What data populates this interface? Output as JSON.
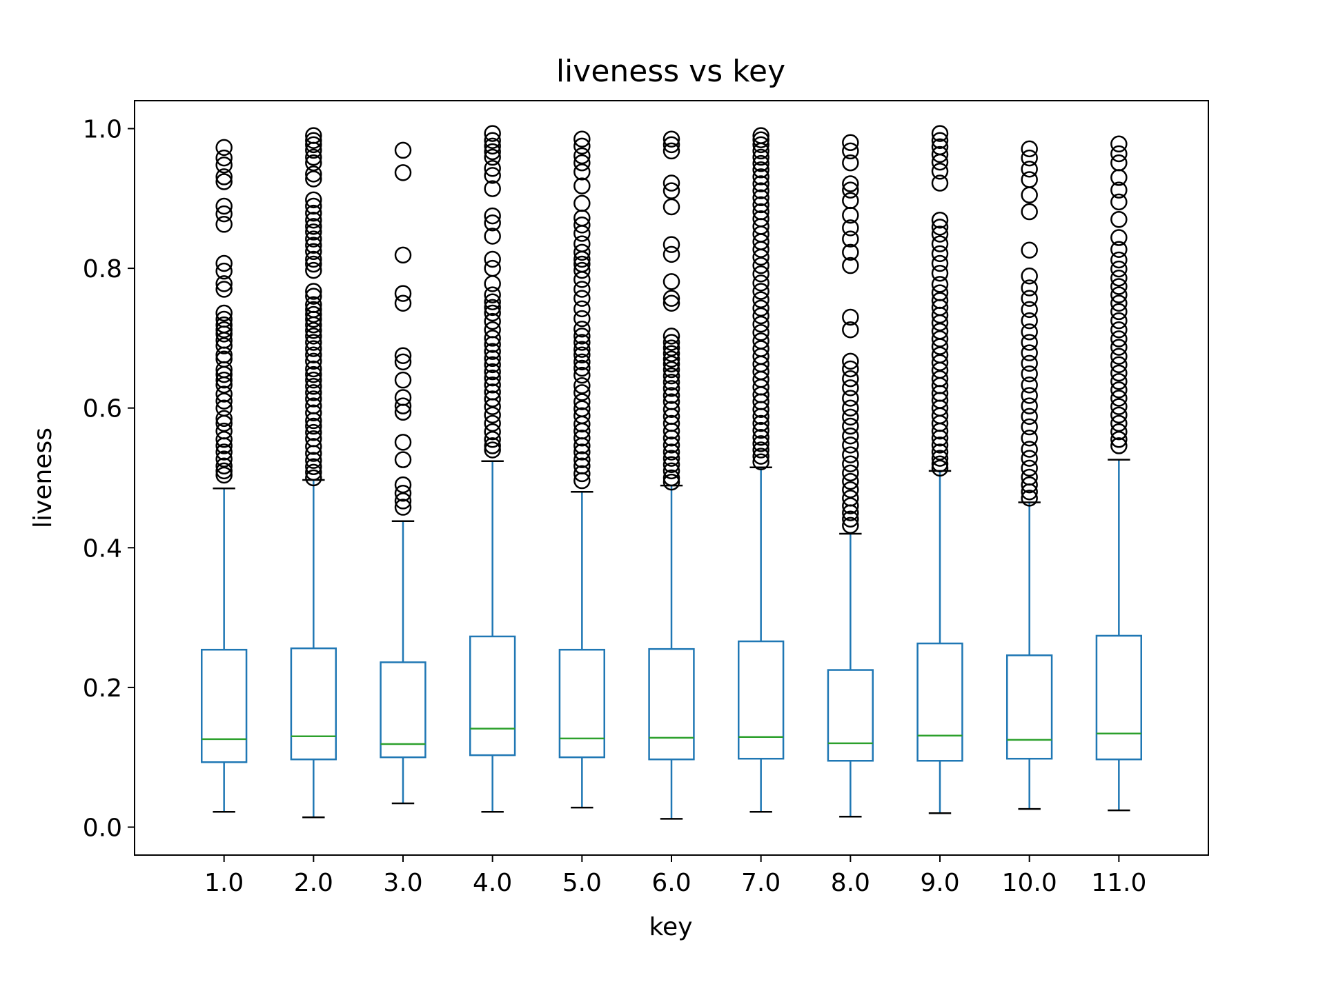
{
  "chart_data": {
    "type": "boxplot",
    "title": "liveness vs key",
    "xlabel": "key",
    "ylabel": "liveness",
    "categories": [
      "1.0",
      "2.0",
      "3.0",
      "4.0",
      "5.0",
      "6.0",
      "7.0",
      "8.0",
      "9.0",
      "10.0",
      "11.0"
    ],
    "ylim": [
      -0.04,
      1.04
    ],
    "yticks": [
      "0.0",
      "0.2",
      "0.4",
      "0.6",
      "0.8",
      "1.0"
    ],
    "grid": false,
    "legend": "none",
    "colors": {
      "box": "#1f77b4",
      "median": "#2ca02c",
      "whisker_cap": "#000000",
      "outlier": "#000000"
    },
    "boxes": [
      {
        "category": "1.0",
        "whisker_low": 0.022,
        "q1": 0.093,
        "median": 0.126,
        "q3": 0.254,
        "whisker_high": 0.485,
        "outliers": [
          0.973,
          0.958,
          0.948,
          0.931,
          0.924,
          0.889,
          0.878,
          0.863,
          0.807,
          0.796,
          0.778,
          0.77,
          0.736,
          0.727,
          0.719,
          0.712,
          0.706,
          0.697,
          0.689,
          0.676,
          0.67,
          0.655,
          0.648,
          0.64,
          0.633,
          0.62,
          0.61,
          0.6,
          0.585,
          0.578,
          0.567,
          0.555,
          0.546,
          0.537,
          0.527,
          0.517,
          0.51,
          0.504
        ]
      },
      {
        "category": "2.0",
        "whisker_low": 0.014,
        "q1": 0.097,
        "median": 0.13,
        "q3": 0.256,
        "whisker_high": 0.497,
        "outliers": [
          0.99,
          0.983,
          0.977,
          0.969,
          0.959,
          0.951,
          0.935,
          0.928,
          0.898,
          0.889,
          0.879,
          0.869,
          0.86,
          0.852,
          0.842,
          0.833,
          0.824,
          0.813,
          0.806,
          0.797,
          0.767,
          0.76,
          0.748,
          0.741,
          0.734,
          0.727,
          0.719,
          0.711,
          0.703,
          0.694,
          0.685,
          0.676,
          0.667,
          0.656,
          0.648,
          0.64,
          0.631,
          0.622,
          0.613,
          0.603,
          0.593,
          0.582,
          0.574,
          0.565,
          0.556,
          0.545,
          0.535,
          0.525,
          0.516,
          0.508,
          0.5
        ]
      },
      {
        "category": "3.0",
        "whisker_low": 0.034,
        "q1": 0.1,
        "median": 0.119,
        "q3": 0.236,
        "whisker_high": 0.438,
        "outliers": [
          0.969,
          0.937,
          0.819,
          0.764,
          0.75,
          0.675,
          0.666,
          0.64,
          0.615,
          0.603,
          0.594,
          0.551,
          0.526,
          0.49,
          0.478,
          0.467,
          0.458
        ]
      },
      {
        "category": "4.0",
        "whisker_low": 0.022,
        "q1": 0.103,
        "median": 0.141,
        "q3": 0.273,
        "whisker_high": 0.524,
        "outliers": [
          0.993,
          0.983,
          0.975,
          0.967,
          0.959,
          0.943,
          0.933,
          0.914,
          0.875,
          0.865,
          0.846,
          0.813,
          0.8,
          0.778,
          0.762,
          0.752,
          0.744,
          0.736,
          0.724,
          0.712,
          0.7,
          0.691,
          0.681,
          0.671,
          0.662,
          0.652,
          0.643,
          0.633,
          0.623,
          0.613,
          0.602,
          0.59,
          0.578,
          0.566,
          0.555,
          0.546,
          0.54
        ]
      },
      {
        "category": "5.0",
        "whisker_low": 0.028,
        "q1": 0.1,
        "median": 0.127,
        "q3": 0.254,
        "whisker_high": 0.48,
        "outliers": [
          0.985,
          0.975,
          0.961,
          0.951,
          0.938,
          0.918,
          0.893,
          0.872,
          0.862,
          0.85,
          0.835,
          0.823,
          0.813,
          0.806,
          0.797,
          0.784,
          0.77,
          0.757,
          0.742,
          0.728,
          0.713,
          0.703,
          0.694,
          0.684,
          0.676,
          0.666,
          0.657,
          0.647,
          0.632,
          0.622,
          0.609,
          0.599,
          0.589,
          0.577,
          0.567,
          0.557,
          0.546,
          0.537,
          0.526,
          0.517,
          0.506,
          0.496
        ]
      },
      {
        "category": "6.0",
        "whisker_low": 0.012,
        "q1": 0.097,
        "median": 0.128,
        "q3": 0.255,
        "whisker_high": 0.489,
        "outliers": [
          0.985,
          0.977,
          0.968,
          0.922,
          0.911,
          0.888,
          0.834,
          0.82,
          0.781,
          0.757,
          0.75,
          0.703,
          0.694,
          0.686,
          0.678,
          0.67,
          0.663,
          0.655,
          0.646,
          0.637,
          0.628,
          0.618,
          0.609,
          0.598,
          0.588,
          0.578,
          0.567,
          0.557,
          0.547,
          0.537,
          0.528,
          0.519,
          0.51,
          0.5,
          0.494
        ]
      },
      {
        "category": "7.0",
        "whisker_low": 0.022,
        "q1": 0.098,
        "median": 0.129,
        "q3": 0.266,
        "whisker_high": 0.515,
        "outliers": [
          0.99,
          0.984,
          0.977,
          0.968,
          0.959,
          0.95,
          0.941,
          0.931,
          0.921,
          0.911,
          0.901,
          0.891,
          0.881,
          0.871,
          0.86,
          0.849,
          0.838,
          0.827,
          0.816,
          0.804,
          0.792,
          0.779,
          0.767,
          0.755,
          0.743,
          0.732,
          0.72,
          0.708,
          0.696,
          0.685,
          0.674,
          0.663,
          0.652,
          0.641,
          0.63,
          0.619,
          0.609,
          0.598,
          0.588,
          0.578,
          0.568,
          0.558,
          0.549,
          0.54,
          0.531,
          0.523
        ]
      },
      {
        "category": "8.0",
        "whisker_low": 0.015,
        "q1": 0.095,
        "median": 0.12,
        "q3": 0.225,
        "whisker_high": 0.42,
        "outliers": [
          0.98,
          0.968,
          0.951,
          0.921,
          0.912,
          0.897,
          0.876,
          0.858,
          0.842,
          0.823,
          0.804,
          0.73,
          0.712,
          0.667,
          0.656,
          0.642,
          0.629,
          0.614,
          0.6,
          0.587,
          0.574,
          0.56,
          0.547,
          0.533,
          0.52,
          0.507,
          0.495,
          0.483,
          0.471,
          0.46,
          0.45,
          0.441,
          0.432
        ]
      },
      {
        "category": "9.0",
        "whisker_low": 0.02,
        "q1": 0.095,
        "median": 0.131,
        "q3": 0.263,
        "whisker_high": 0.51,
        "outliers": [
          0.993,
          0.983,
          0.974,
          0.963,
          0.952,
          0.939,
          0.922,
          0.869,
          0.859,
          0.849,
          0.835,
          0.821,
          0.807,
          0.793,
          0.777,
          0.765,
          0.754,
          0.744,
          0.733,
          0.722,
          0.71,
          0.699,
          0.688,
          0.676,
          0.665,
          0.654,
          0.642,
          0.632,
          0.621,
          0.611,
          0.6,
          0.589,
          0.578,
          0.567,
          0.557,
          0.547,
          0.537,
          0.528,
          0.52,
          0.514
        ]
      },
      {
        "category": "10.0",
        "whisker_low": 0.026,
        "q1": 0.098,
        "median": 0.125,
        "q3": 0.246,
        "whisker_high": 0.465,
        "outliers": [
          0.971,
          0.958,
          0.942,
          0.927,
          0.905,
          0.881,
          0.826,
          0.789,
          0.772,
          0.757,
          0.741,
          0.725,
          0.709,
          0.694,
          0.679,
          0.664,
          0.649,
          0.633,
          0.618,
          0.603,
          0.588,
          0.573,
          0.557,
          0.541,
          0.528,
          0.514,
          0.501,
          0.49,
          0.48,
          0.471
        ]
      },
      {
        "category": "11.0",
        "whisker_low": 0.024,
        "q1": 0.097,
        "median": 0.134,
        "q3": 0.274,
        "whisker_high": 0.526,
        "outliers": [
          0.978,
          0.964,
          0.951,
          0.93,
          0.912,
          0.895,
          0.87,
          0.844,
          0.827,
          0.812,
          0.799,
          0.786,
          0.774,
          0.762,
          0.75,
          0.738,
          0.725,
          0.712,
          0.699,
          0.687,
          0.674,
          0.662,
          0.65,
          0.638,
          0.626,
          0.614,
          0.602,
          0.59,
          0.578,
          0.566,
          0.555,
          0.546
        ]
      }
    ]
  }
}
